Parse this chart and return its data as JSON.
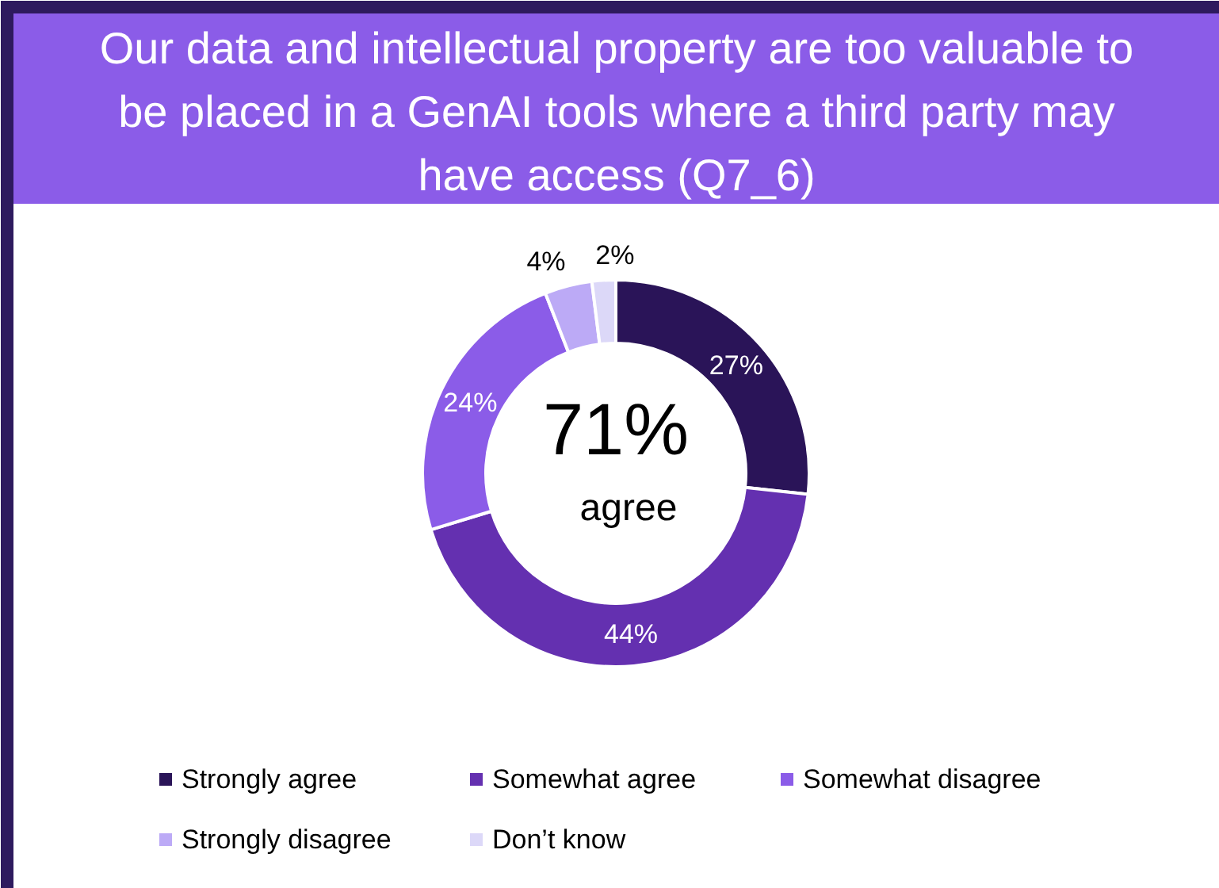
{
  "chart_data": {
    "type": "donut",
    "title": "Our data and intellectual property are too valuable to be placed in a GenAI tools where a third party may have access (Q7_6)",
    "categories": [
      "Strongly agree",
      "Somewhat agree",
      "Somewhat disagree",
      "Strongly disagree",
      "Don’t know"
    ],
    "values": [
      27,
      44,
      24,
      4,
      2
    ],
    "colors": [
      "#2a1458",
      "#6430b0",
      "#8b5ce8",
      "#bcaaf6",
      "#dcd8f8"
    ],
    "value_labels": [
      "27%",
      "44%",
      "24%",
      "4%",
      "2%"
    ],
    "annotations": [
      "71%",
      "agree"
    ],
    "legend": "bottom"
  }
}
